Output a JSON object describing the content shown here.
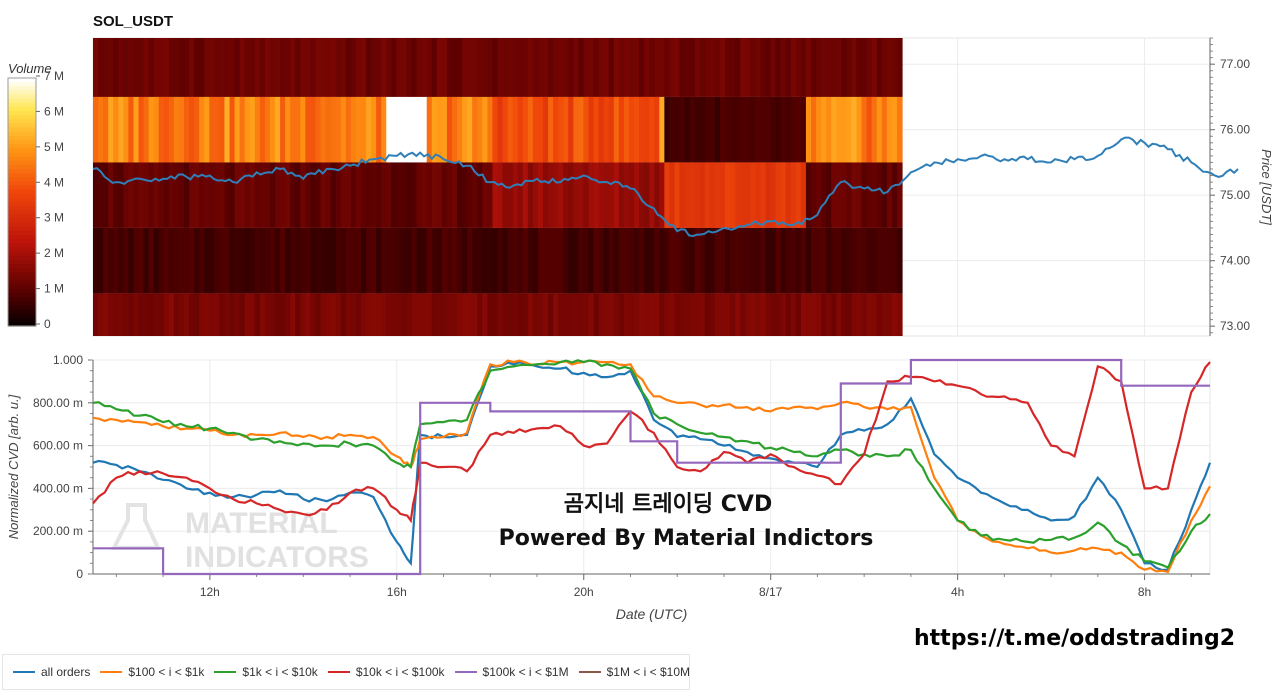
{
  "chart_data": [
    {
      "type": "heatmap",
      "title": "SOL_USDT",
      "ylabel": "Price [USDT]",
      "ylim": [
        72.85,
        77.4
      ],
      "yticks": [
        "73.00",
        "74.00",
        "75.00",
        "76.00",
        "77.00"
      ],
      "colorbar": {
        "title": "Volume",
        "labels": [
          "0",
          "1 M",
          "2 M",
          "3 M",
          "4 M",
          "5 M",
          "6 M",
          "7 M"
        ],
        "range": [
          0,
          7
        ]
      },
      "price_series": {
        "name": "price",
        "color": "#2f7fb8",
        "x_hours": [
          9.5,
          10.0,
          10.5,
          11.0,
          11.5,
          12.0,
          12.5,
          13.0,
          13.5,
          14.0,
          14.5,
          15.0,
          15.5,
          16.0,
          16.5,
          17.0,
          17.5,
          18.0,
          18.5,
          19.0,
          19.5,
          20.0,
          20.5,
          21.0,
          21.5,
          22.0,
          22.5,
          23.0,
          23.5,
          24.0,
          24.5,
          25.0,
          25.5,
          26.0,
          26.5,
          27.0,
          27.5,
          28.0,
          28.5,
          29.0,
          29.5,
          30.0,
          30.5,
          31.0,
          31.5,
          32.0,
          32.5,
          33.0,
          33.5,
          34.0
        ],
        "values": [
          75.4,
          75.2,
          75.25,
          75.25,
          75.28,
          75.3,
          75.2,
          75.35,
          75.4,
          75.25,
          75.4,
          75.45,
          75.55,
          75.6,
          75.65,
          75.55,
          75.45,
          75.2,
          75.15,
          75.25,
          75.2,
          75.3,
          75.2,
          75.1,
          74.8,
          74.45,
          74.4,
          74.5,
          74.55,
          74.6,
          74.55,
          74.7,
          75.2,
          75.1,
          75.05,
          75.35,
          75.5,
          75.55,
          75.6,
          75.55,
          75.55,
          75.5,
          75.55,
          75.6,
          75.85,
          75.8,
          75.7,
          75.5,
          75.3,
          75.4
        ]
      },
      "volume_bands": [
        {
          "from": 76.5,
          "to": 77.4,
          "level": 1.3
        },
        {
          "from": 75.5,
          "to": 76.5,
          "level": 4.5
        },
        {
          "from": 74.5,
          "to": 75.5,
          "level": 1.2
        },
        {
          "from": 73.5,
          "to": 74.5,
          "level": 0.7
        },
        {
          "from": 72.85,
          "to": 73.5,
          "level": 1.5
        }
      ]
    },
    {
      "type": "line",
      "ylabel": "Normalized CVD [arb. u.]",
      "xlabel": "Date (UTC)",
      "ylim": [
        0,
        1
      ],
      "yticks": [
        "0",
        "200.00 m",
        "400.00 m",
        "600.00 m",
        "800.00 m",
        "1.000"
      ],
      "xticks": [
        {
          "label": "12h",
          "hour": 12
        },
        {
          "label": "16h",
          "hour": 16
        },
        {
          "label": "20h",
          "hour": 20
        },
        {
          "label": "8/17",
          "hour": 24
        },
        {
          "label": "4h",
          "hour": 28
        },
        {
          "label": "8h",
          "hour": 32
        }
      ],
      "xlim_hours": [
        9.5,
        33.4
      ],
      "x_hours": [
        9.5,
        10.0,
        10.5,
        11.0,
        11.5,
        12.0,
        12.5,
        13.0,
        13.5,
        14.0,
        14.5,
        15.0,
        15.5,
        16.0,
        16.3,
        16.5,
        17.0,
        17.5,
        18.0,
        18.5,
        19.0,
        19.5,
        20.0,
        20.5,
        21.0,
        21.5,
        22.0,
        22.5,
        23.0,
        23.5,
        24.0,
        24.5,
        25.0,
        25.5,
        26.0,
        26.5,
        27.0,
        27.5,
        28.0,
        28.5,
        29.0,
        29.5,
        30.0,
        30.5,
        31.0,
        31.5,
        32.0,
        32.5,
        33.0,
        33.4
      ],
      "series": [
        {
          "name": "all orders",
          "color": "#1f77b4",
          "values": [
            0.52,
            0.51,
            0.48,
            0.44,
            0.4,
            0.38,
            0.36,
            0.37,
            0.39,
            0.35,
            0.34,
            0.38,
            0.36,
            0.15,
            0.05,
            0.65,
            0.64,
            0.65,
            0.97,
            0.98,
            0.97,
            0.96,
            0.94,
            0.92,
            0.95,
            0.72,
            0.64,
            0.63,
            0.6,
            0.57,
            0.54,
            0.52,
            0.5,
            0.65,
            0.67,
            0.7,
            0.82,
            0.56,
            0.45,
            0.38,
            0.33,
            0.3,
            0.25,
            0.27,
            0.45,
            0.3,
            0.05,
            0.02,
            0.3,
            0.52
          ]
        },
        {
          "name": "$100 < i < $1k",
          "color": "#ff7f0e",
          "values": [
            0.73,
            0.72,
            0.71,
            0.69,
            0.68,
            0.67,
            0.65,
            0.65,
            0.66,
            0.64,
            0.64,
            0.65,
            0.64,
            0.55,
            0.5,
            0.63,
            0.64,
            0.66,
            0.98,
            0.99,
            0.98,
            0.99,
            0.99,
            0.99,
            0.98,
            0.83,
            0.8,
            0.79,
            0.79,
            0.78,
            0.76,
            0.78,
            0.77,
            0.8,
            0.78,
            0.77,
            0.78,
            0.45,
            0.25,
            0.18,
            0.14,
            0.12,
            0.1,
            0.11,
            0.12,
            0.1,
            0.02,
            0.01,
            0.25,
            0.41
          ]
        },
        {
          "name": "$1k < i < $10k",
          "color": "#2ca02c",
          "values": [
            0.8,
            0.77,
            0.74,
            0.71,
            0.69,
            0.68,
            0.66,
            0.63,
            0.62,
            0.61,
            0.6,
            0.61,
            0.6,
            0.52,
            0.5,
            0.7,
            0.71,
            0.72,
            0.95,
            0.97,
            0.98,
            0.99,
            0.99,
            0.98,
            0.96,
            0.75,
            0.7,
            0.66,
            0.64,
            0.62,
            0.59,
            0.57,
            0.55,
            0.58,
            0.56,
            0.55,
            0.58,
            0.4,
            0.25,
            0.18,
            0.16,
            0.15,
            0.16,
            0.17,
            0.24,
            0.14,
            0.06,
            0.03,
            0.2,
            0.28
          ]
        },
        {
          "name": "$10k < i < $100k",
          "color": "#d62728",
          "values": [
            0.33,
            0.45,
            0.48,
            0.47,
            0.45,
            0.4,
            0.35,
            0.33,
            0.3,
            0.28,
            0.3,
            0.38,
            0.4,
            0.3,
            0.25,
            0.52,
            0.5,
            0.48,
            0.65,
            0.66,
            0.68,
            0.69,
            0.6,
            0.61,
            0.76,
            0.66,
            0.5,
            0.48,
            0.57,
            0.52,
            0.56,
            0.5,
            0.46,
            0.42,
            0.56,
            0.9,
            0.92,
            0.9,
            0.88,
            0.84,
            0.83,
            0.8,
            0.6,
            0.55,
            0.97,
            0.9,
            0.4,
            0.4,
            0.85,
            0.99
          ]
        },
        {
          "name": "$100k < i < $1M",
          "color": "#9467bd",
          "values": [
            0.12,
            0.12,
            0.12,
            0.0,
            0.0,
            0.0,
            0.0,
            0.0,
            0.0,
            0.0,
            0.0,
            0.0,
            0.0,
            0.0,
            0.0,
            0.8,
            0.8,
            0.8,
            0.76,
            0.76,
            0.76,
            0.76,
            0.76,
            0.76,
            0.62,
            0.62,
            0.52,
            0.52,
            0.52,
            0.52,
            0.52,
            0.52,
            0.52,
            0.89,
            0.89,
            0.89,
            1.0,
            1.0,
            1.0,
            1.0,
            1.0,
            1.0,
            1.0,
            1.0,
            1.0,
            0.88,
            0.88,
            0.88,
            0.88,
            0.88
          ]
        },
        {
          "name": "$1M < i < $10M",
          "color": "#8c564b",
          "values": []
        }
      ],
      "annotations": [
        {
          "text": "곰지네 트레이딩 CVD"
        },
        {
          "text": "Powered By Material Indictors"
        }
      ],
      "watermark": {
        "line1": "MATERIAL",
        "line2": "INDICATORS"
      },
      "legend_position": "bottom-left"
    }
  ],
  "footer": {
    "url": "https://t.me/oddstrading2"
  }
}
